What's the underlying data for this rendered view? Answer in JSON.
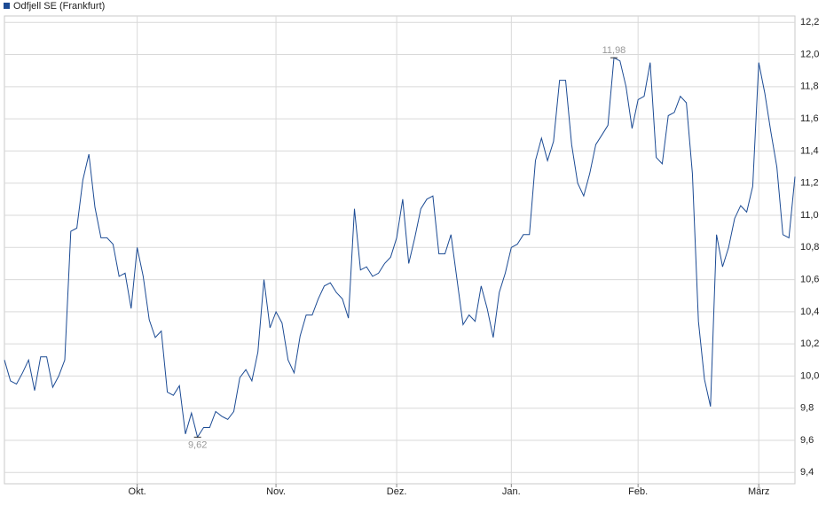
{
  "chart_data": {
    "type": "line",
    "series": [
      {
        "name": "Odfjell SE (Frankfurt)",
        "color": "#1c4b94",
        "values": [
          10.1,
          9.97,
          9.95,
          10.02,
          10.1,
          9.91,
          10.12,
          10.12,
          9.93,
          10.0,
          10.1,
          10.9,
          10.92,
          11.22,
          11.38,
          11.05,
          10.86,
          10.86,
          10.82,
          10.62,
          10.64,
          10.42,
          10.8,
          10.62,
          10.35,
          10.24,
          10.28,
          9.9,
          9.88,
          9.94,
          9.64,
          9.77,
          9.62,
          9.68,
          9.68,
          9.78,
          9.75,
          9.73,
          9.78,
          9.99,
          10.04,
          9.97,
          10.15,
          10.6,
          10.3,
          10.4,
          10.33,
          10.1,
          10.02,
          10.25,
          10.38,
          10.38,
          10.48,
          10.56,
          10.58,
          10.52,
          10.48,
          10.36,
          11.04,
          10.66,
          10.68,
          10.62,
          10.64,
          10.7,
          10.74,
          10.86,
          11.1,
          10.7,
          10.86,
          11.04,
          11.1,
          11.12,
          10.76,
          10.76,
          10.88,
          10.6,
          10.32,
          10.38,
          10.34,
          10.56,
          10.42,
          10.24,
          10.52,
          10.64,
          10.8,
          10.82,
          10.88,
          10.88,
          11.34,
          11.48,
          11.34,
          11.46,
          11.84,
          11.84,
          11.44,
          11.2,
          11.12,
          11.26,
          11.44,
          11.5,
          11.56,
          11.98,
          11.96,
          11.8,
          11.54,
          11.72,
          11.74,
          11.95,
          11.36,
          11.32,
          11.62,
          11.64,
          11.74,
          11.7,
          11.26,
          10.34,
          9.98,
          9.81,
          10.88,
          10.68,
          10.8,
          10.98,
          11.06,
          11.02,
          11.18,
          11.95,
          11.76,
          11.52,
          11.3,
          10.88,
          10.86,
          11.24
        ]
      }
    ],
    "xticks": [
      {
        "value": 22,
        "label": "Okt."
      },
      {
        "value": 45,
        "label": "Nov."
      },
      {
        "value": 65,
        "label": "Dez."
      },
      {
        "value": 84,
        "label": "Jan."
      },
      {
        "value": 105,
        "label": "Feb."
      },
      {
        "value": 125,
        "label": "März"
      }
    ],
    "ylim": [
      9.33,
      12.24
    ],
    "yticks": [
      {
        "value": 9.4,
        "label": "9,4"
      },
      {
        "value": 9.6,
        "label": "9,6"
      },
      {
        "value": 9.8,
        "label": "9,8"
      },
      {
        "value": 10.0,
        "label": "10,0"
      },
      {
        "value": 10.2,
        "label": "10,2"
      },
      {
        "value": 10.4,
        "label": "10,4"
      },
      {
        "value": 10.6,
        "label": "10,6"
      },
      {
        "value": 10.8,
        "label": "10,8"
      },
      {
        "value": 11.0,
        "label": "11,0"
      },
      {
        "value": 11.2,
        "label": "11,2"
      },
      {
        "value": 11.4,
        "label": "11,4"
      },
      {
        "value": 11.6,
        "label": "11,6"
      },
      {
        "value": 11.8,
        "label": "11,8"
      },
      {
        "value": 12.0,
        "label": "12,0"
      },
      {
        "value": 12.2,
        "label": "12,2"
      }
    ],
    "annotations": [
      {
        "label": "11,98",
        "value": 11.98
      },
      {
        "label": "9,62",
        "value": 9.62
      }
    ],
    "grid": true
  }
}
